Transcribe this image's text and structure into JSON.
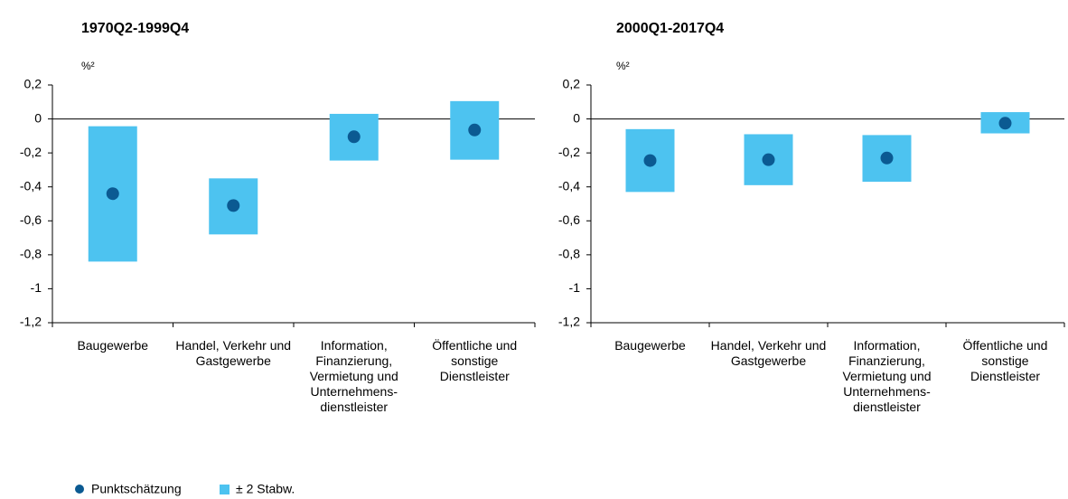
{
  "chart_data": [
    {
      "type": "dot-range",
      "title": "1970Q2-1999Q4",
      "y_unit": "%²",
      "categories": [
        "Baugewerbe",
        "Handel, Verkehr und Gastgewerbe",
        "Information, Finanzierung, Vermietung und Unternehmens-dienstleister",
        "Öffentliche und sonstige Dienstleister"
      ],
      "values": [
        -0.44,
        -0.51,
        -0.105,
        -0.065
      ],
      "low": [
        -0.84,
        -0.68,
        -0.245,
        -0.24
      ],
      "high": [
        -0.043,
        -0.35,
        0.03,
        0.105
      ],
      "point_color": "#0b5a92",
      "range_color": "#4dc3f0",
      "ylim": [
        -1.2,
        0.2
      ],
      "yticks": [
        {
          "value": -1.2,
          "label": "-1,2"
        },
        -1,
        {
          "value": -0.8,
          "label": "-0,8"
        },
        {
          "value": -0.6,
          "label": "-0,6"
        },
        {
          "value": -0.4,
          "label": "-0,4"
        },
        {
          "value": -0.2,
          "label": "-0,2"
        },
        0,
        {
          "value": 0.2,
          "label": "0,2"
        }
      ]
    },
    {
      "type": "dot-range",
      "title": "2000Q1-2017Q4",
      "y_unit": "%²",
      "categories": [
        "Baugewerbe",
        "Handel, Verkehr und Gastgewerbe",
        "Information, Finanzierung, Vermietung und Unternehmens-dienstleister",
        "Öffentliche und sonstige Dienstleister"
      ],
      "values": [
        -0.245,
        -0.24,
        -0.23,
        -0.025
      ],
      "low": [
        -0.43,
        -0.39,
        -0.37,
        -0.085
      ],
      "high": [
        -0.06,
        -0.09,
        -0.095,
        0.04
      ],
      "point_color": "#0b5a92",
      "range_color": "#4dc3f0",
      "ylim": [
        -1.2,
        0.2
      ],
      "yticks": [
        {
          "value": -1.2,
          "label": "-1,2"
        },
        -1,
        {
          "value": -0.8,
          "label": "-0,8"
        },
        {
          "value": -0.6,
          "label": "-0,6"
        },
        {
          "value": -0.4,
          "label": "-0,4"
        },
        {
          "value": -0.2,
          "label": "-0,2"
        },
        0,
        {
          "value": 0.2,
          "label": "0,2"
        }
      ]
    }
  ],
  "legend": [
    {
      "name": "Punktschätzung",
      "color": "#0b5a92",
      "shape": "dot"
    },
    {
      "name": "± 2 Stabw.",
      "color": "#4dc3f0",
      "shape": "square"
    }
  ]
}
